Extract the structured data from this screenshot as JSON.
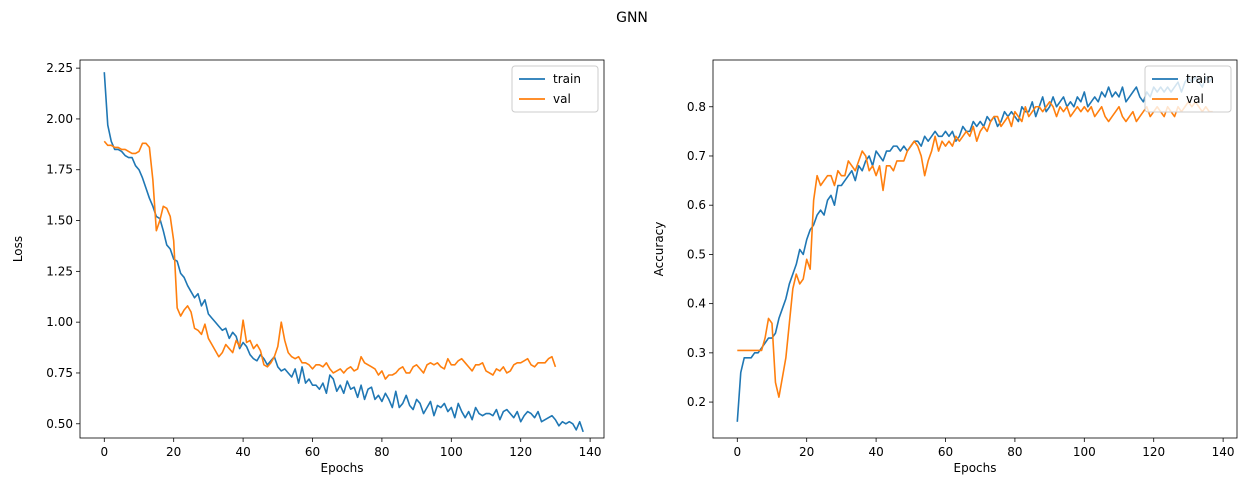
{
  "figure": {
    "title": "GNN"
  },
  "colors": {
    "train": "#1f77b4",
    "val": "#ff7f0e"
  },
  "chart_data": [
    {
      "type": "line",
      "xlabel": "Epochs",
      "ylabel": "Loss",
      "xlim": [
        -7,
        144
      ],
      "ylim": [
        0.43,
        2.29
      ],
      "xticks": [
        0,
        20,
        40,
        60,
        80,
        100,
        120,
        140
      ],
      "xtick_labels": [
        "0",
        "20",
        "40",
        "60",
        "80",
        "100",
        "120",
        "140"
      ],
      "yticks": [
        0.5,
        0.75,
        1.0,
        1.25,
        1.5,
        1.75,
        2.0,
        2.25
      ],
      "ytick_labels": [
        "0.50",
        "0.75",
        "1.00",
        "1.25",
        "1.50",
        "1.75",
        "2.00",
        "2.25"
      ],
      "grid": false,
      "legend": "upper right",
      "series": [
        {
          "name": "train",
          "x_start": 0,
          "x_step": 1,
          "values": [
            2.23,
            1.97,
            1.89,
            1.85,
            1.85,
            1.84,
            1.82,
            1.81,
            1.81,
            1.77,
            1.75,
            1.71,
            1.66,
            1.61,
            1.57,
            1.52,
            1.51,
            1.45,
            1.38,
            1.36,
            1.31,
            1.3,
            1.24,
            1.22,
            1.18,
            1.15,
            1.12,
            1.14,
            1.08,
            1.11,
            1.04,
            1.02,
            1.0,
            0.98,
            0.96,
            0.97,
            0.92,
            0.95,
            0.93,
            0.87,
            0.9,
            0.88,
            0.84,
            0.82,
            0.81,
            0.84,
            0.82,
            0.79,
            0.81,
            0.83,
            0.78,
            0.76,
            0.77,
            0.75,
            0.73,
            0.77,
            0.7,
            0.78,
            0.7,
            0.72,
            0.69,
            0.69,
            0.67,
            0.7,
            0.65,
            0.74,
            0.72,
            0.66,
            0.69,
            0.65,
            0.71,
            0.67,
            0.68,
            0.63,
            0.69,
            0.62,
            0.67,
            0.68,
            0.62,
            0.64,
            0.61,
            0.65,
            0.62,
            0.58,
            0.66,
            0.58,
            0.6,
            0.64,
            0.59,
            0.57,
            0.62,
            0.6,
            0.55,
            0.58,
            0.61,
            0.54,
            0.59,
            0.58,
            0.6,
            0.56,
            0.58,
            0.53,
            0.6,
            0.56,
            0.53,
            0.56,
            0.52,
            0.58,
            0.55,
            0.54,
            0.55,
            0.55,
            0.54,
            0.57,
            0.52,
            0.56,
            0.57,
            0.55,
            0.53,
            0.56,
            0.51,
            0.54,
            0.56,
            0.55,
            0.53,
            0.56,
            0.51,
            0.52,
            0.53,
            0.54,
            0.52,
            0.49,
            0.51,
            0.5,
            0.51,
            0.5,
            0.47,
            0.51,
            0.46
          ]
        },
        {
          "name": "val",
          "x_start": 0,
          "x_step": 1,
          "values": [
            1.89,
            1.87,
            1.87,
            1.86,
            1.86,
            1.85,
            1.85,
            1.84,
            1.83,
            1.83,
            1.84,
            1.88,
            1.88,
            1.86,
            1.7,
            1.45,
            1.5,
            1.57,
            1.56,
            1.52,
            1.4,
            1.07,
            1.03,
            1.06,
            1.08,
            1.05,
            0.97,
            0.96,
            0.94,
            0.99,
            0.92,
            0.89,
            0.86,
            0.83,
            0.85,
            0.89,
            0.87,
            0.85,
            0.91,
            0.88,
            1.01,
            0.9,
            0.91,
            0.87,
            0.89,
            0.86,
            0.79,
            0.78,
            0.8,
            0.83,
            0.88,
            1.0,
            0.91,
            0.85,
            0.83,
            0.82,
            0.83,
            0.8,
            0.8,
            0.79,
            0.77,
            0.79,
            0.79,
            0.78,
            0.8,
            0.77,
            0.75,
            0.76,
            0.77,
            0.75,
            0.77,
            0.78,
            0.76,
            0.77,
            0.83,
            0.8,
            0.79,
            0.78,
            0.77,
            0.74,
            0.76,
            0.72,
            0.74,
            0.74,
            0.75,
            0.77,
            0.78,
            0.75,
            0.75,
            0.78,
            0.79,
            0.77,
            0.75,
            0.79,
            0.8,
            0.79,
            0.8,
            0.78,
            0.77,
            0.82,
            0.79,
            0.79,
            0.81,
            0.82,
            0.8,
            0.78,
            0.76,
            0.79,
            0.79,
            0.8,
            0.76,
            0.75,
            0.74,
            0.77,
            0.76,
            0.78,
            0.75,
            0.76,
            0.79,
            0.8,
            0.8,
            0.81,
            0.82,
            0.79,
            0.78,
            0.8,
            0.8,
            0.8,
            0.82,
            0.83,
            0.78
          ]
        }
      ]
    },
    {
      "type": "line",
      "xlabel": "Epochs",
      "ylabel": "Accuracy",
      "xlim": [
        -7,
        144
      ],
      "ylim": [
        0.127,
        0.895
      ],
      "xticks": [
        0,
        20,
        40,
        60,
        80,
        100,
        120,
        140
      ],
      "xtick_labels": [
        "0",
        "20",
        "40",
        "60",
        "80",
        "100",
        "120",
        "140"
      ],
      "yticks": [
        0.2,
        0.3,
        0.4,
        0.5,
        0.6,
        0.7,
        0.8
      ],
      "ytick_labels": [
        "0.2",
        "0.3",
        "0.4",
        "0.5",
        "0.6",
        "0.7",
        "0.8"
      ],
      "grid": false,
      "legend": "upper right",
      "series": [
        {
          "name": "train",
          "x_start": 0,
          "x_step": 1,
          "values": [
            0.16,
            0.26,
            0.29,
            0.29,
            0.29,
            0.3,
            0.3,
            0.31,
            0.32,
            0.33,
            0.33,
            0.34,
            0.37,
            0.39,
            0.41,
            0.44,
            0.46,
            0.48,
            0.51,
            0.5,
            0.53,
            0.55,
            0.56,
            0.58,
            0.59,
            0.58,
            0.61,
            0.62,
            0.6,
            0.64,
            0.64,
            0.65,
            0.66,
            0.67,
            0.65,
            0.68,
            0.67,
            0.69,
            0.7,
            0.68,
            0.71,
            0.7,
            0.69,
            0.71,
            0.71,
            0.72,
            0.72,
            0.71,
            0.72,
            0.71,
            0.72,
            0.73,
            0.73,
            0.72,
            0.74,
            0.73,
            0.74,
            0.75,
            0.74,
            0.74,
            0.75,
            0.74,
            0.75,
            0.73,
            0.74,
            0.76,
            0.75,
            0.75,
            0.77,
            0.76,
            0.77,
            0.76,
            0.78,
            0.77,
            0.78,
            0.76,
            0.77,
            0.79,
            0.78,
            0.79,
            0.78,
            0.77,
            0.8,
            0.79,
            0.79,
            0.81,
            0.78,
            0.8,
            0.82,
            0.79,
            0.8,
            0.82,
            0.8,
            0.81,
            0.82,
            0.8,
            0.81,
            0.8,
            0.82,
            0.81,
            0.83,
            0.8,
            0.81,
            0.82,
            0.81,
            0.83,
            0.82,
            0.84,
            0.82,
            0.83,
            0.82,
            0.84,
            0.81,
            0.82,
            0.83,
            0.84,
            0.82,
            0.81,
            0.83,
            0.82,
            0.84,
            0.83,
            0.84,
            0.83,
            0.84,
            0.83,
            0.84,
            0.85,
            0.83,
            0.85,
            0.86,
            0.85,
            0.86,
            0.85,
            0.84,
            0.86,
            0.85,
            0.86
          ]
        },
        {
          "name": "val",
          "x_start": 0,
          "x_step": 1,
          "values": [
            0.305,
            0.305,
            0.305,
            0.305,
            0.305,
            0.305,
            0.305,
            0.305,
            0.33,
            0.37,
            0.36,
            0.24,
            0.21,
            0.25,
            0.29,
            0.36,
            0.43,
            0.46,
            0.44,
            0.45,
            0.49,
            0.47,
            0.61,
            0.66,
            0.64,
            0.65,
            0.66,
            0.66,
            0.64,
            0.67,
            0.66,
            0.66,
            0.69,
            0.68,
            0.67,
            0.69,
            0.71,
            0.7,
            0.67,
            0.68,
            0.66,
            0.68,
            0.63,
            0.68,
            0.68,
            0.67,
            0.69,
            0.69,
            0.69,
            0.71,
            0.72,
            0.73,
            0.72,
            0.7,
            0.66,
            0.69,
            0.71,
            0.74,
            0.71,
            0.73,
            0.72,
            0.73,
            0.72,
            0.74,
            0.73,
            0.74,
            0.75,
            0.74,
            0.76,
            0.73,
            0.75,
            0.76,
            0.75,
            0.77,
            0.78,
            0.78,
            0.76,
            0.77,
            0.78,
            0.76,
            0.79,
            0.78,
            0.77,
            0.8,
            0.78,
            0.79,
            0.8,
            0.8,
            0.79,
            0.8,
            0.81,
            0.8,
            0.78,
            0.8,
            0.79,
            0.8,
            0.78,
            0.79,
            0.8,
            0.79,
            0.8,
            0.79,
            0.8,
            0.78,
            0.79,
            0.8,
            0.78,
            0.77,
            0.78,
            0.79,
            0.8,
            0.78,
            0.77,
            0.78,
            0.79,
            0.77,
            0.78,
            0.79,
            0.8,
            0.78,
            0.79,
            0.8,
            0.79,
            0.78,
            0.8,
            0.79,
            0.78,
            0.8,
            0.79,
            0.8,
            0.81,
            0.8,
            0.81,
            0.8,
            0.79,
            0.8,
            0.79,
            0.79
          ]
        }
      ]
    }
  ]
}
